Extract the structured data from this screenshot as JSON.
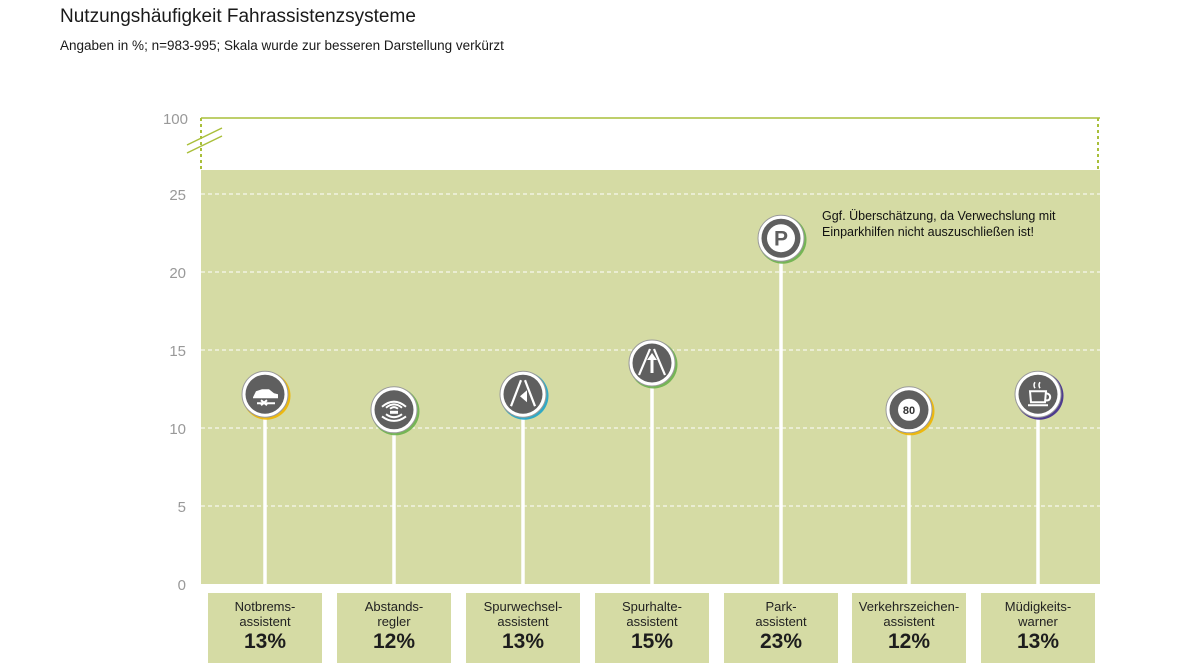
{
  "title": "Nutzungshäufigkeit Fahrassistenzsysteme",
  "subtitle": "Angaben in %; n=983-995; Skala wurde zur besseren Darstellung verkürzt",
  "note": "Ggf. Überschätzung, da Verwechslung mit Einparkhilfen nicht auszuschließen ist!",
  "colors": {
    "plot_bg": "#d5dba4",
    "grid": "#ffffff",
    "axis_break": "#a9bf3a",
    "icon": "#5f5f5f"
  },
  "chart_data": {
    "type": "lollipop",
    "title": "Nutzungshäufigkeit Fahrassistenzsysteme",
    "ylim": [
      0,
      100
    ],
    "axis_break": [
      26.5,
      100
    ],
    "y_ticks": [
      "0",
      "5",
      "10",
      "15",
      "20",
      "25",
      "100"
    ],
    "grid": true,
    "categories": [
      "Notbrems-\nassistent",
      "Abstands-\nregler",
      "Spurwechsel-\nassistent",
      "Spurhalte-\nassistent",
      "Park-\nassistent",
      "Verkehrszeichen-\nassistent",
      "Müdigkeits-\nwarner"
    ],
    "values": [
      13,
      12,
      13,
      15,
      23,
      12,
      13
    ],
    "value_labels": [
      "13%",
      "12%",
      "13%",
      "15%",
      "23%",
      "12%",
      "13%"
    ],
    "icons": [
      "car-brake-icon",
      "radar-waves-icon",
      "lane-change-icon",
      "lane-keep-icon",
      "parking-icon",
      "speed-sign-80-icon",
      "coffee-cup-icon"
    ],
    "icon_texts": [
      "",
      "",
      "",
      "",
      "P",
      "80",
      ""
    ],
    "ring_colors": [
      "#f0b400",
      "#6ab04c",
      "#1fa3c9",
      "#6ab04c",
      "#6ab04c",
      "#f0b400",
      "#3f2a8c"
    ]
  }
}
